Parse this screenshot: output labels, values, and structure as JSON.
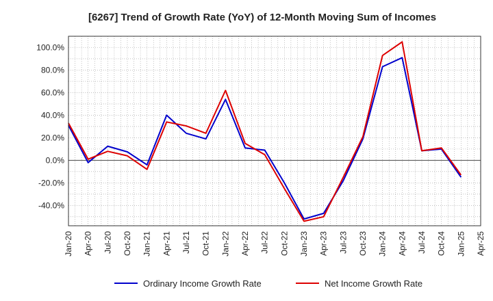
{
  "chart_data": {
    "type": "line",
    "title": "[6267]  Trend of Growth Rate (YoY) of 12-Month Moving Sum of Incomes",
    "xlabel": "",
    "ylabel": "",
    "x": [
      "Jan-20",
      "Apr-20",
      "Jul-20",
      "Oct-20",
      "Jan-21",
      "Apr-21",
      "Jul-21",
      "Oct-21",
      "Jan-22",
      "Apr-22",
      "Jul-22",
      "Oct-22",
      "Jan-23",
      "Apr-23",
      "Jul-23",
      "Oct-23",
      "Jan-24",
      "Apr-24",
      "Jul-24",
      "Oct-24",
      "Jan-25"
    ],
    "x_ticks": [
      "Jan-20",
      "Apr-20",
      "Jul-20",
      "Oct-20",
      "Jan-21",
      "Apr-21",
      "Jul-21",
      "Oct-21",
      "Jan-22",
      "Apr-22",
      "Jul-22",
      "Oct-22",
      "Jan-23",
      "Apr-23",
      "Jul-23",
      "Oct-23",
      "Jan-24",
      "Apr-24",
      "Jul-24",
      "Oct-24",
      "Jan-25",
      "Apr-25"
    ],
    "y_ticks": [
      {
        "value": 100,
        "label": "100.0%"
      },
      {
        "value": 80,
        "label": "80.0%"
      },
      {
        "value": 60,
        "label": "60.0%"
      },
      {
        "value": 40,
        "label": "40.0%"
      },
      {
        "value": 20,
        "label": "20.0%"
      },
      {
        "value": 0,
        "label": "0.0%"
      },
      {
        "value": -20,
        "label": "-20.0%"
      },
      {
        "value": -40,
        "label": "-40.0%"
      }
    ],
    "ylim": [
      -58,
      110
    ],
    "grid": true,
    "legend_position": "bottom",
    "series": [
      {
        "name": "Ordinary Income Growth Rate",
        "color": "#0000cc",
        "values": [
          31,
          -2,
          12.5,
          7.5,
          -4,
          40,
          24,
          19,
          54,
          11,
          9,
          -20,
          -52,
          -47,
          -18,
          19,
          83,
          91,
          8.5,
          10,
          -15
        ]
      },
      {
        "name": "Net Income Growth Rate",
        "color": "#dd0000",
        "values": [
          33,
          1,
          8,
          4,
          -8,
          34,
          30.5,
          24,
          62,
          15,
          5,
          -25,
          -54,
          -50,
          -15,
          21,
          93,
          105,
          8.5,
          11,
          -13
        ]
      }
    ]
  }
}
